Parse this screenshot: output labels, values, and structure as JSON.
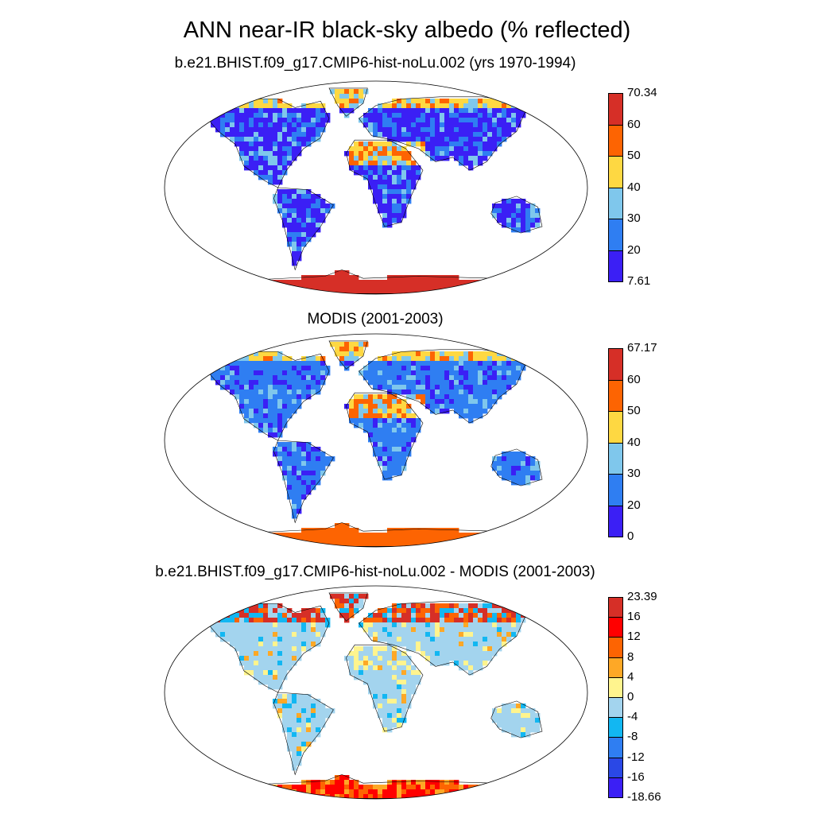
{
  "figure": {
    "title": "ANN near-IR black-sky albedo (% reflected)"
  },
  "panels": [
    {
      "id": "model",
      "title": "b.e21.BHIST.f09_g17.CMIP6-hist-noLu.002 (yrs 1970-1994)",
      "colorbar": {
        "max_label": "70.34",
        "min_label": "7.61",
        "tick_labels": [
          "60",
          "50",
          "40",
          "30",
          "20"
        ],
        "colors": [
          "#d62f27",
          "#fd6402",
          "#fed842",
          "#7fc7ec",
          "#2f7ef2",
          "#3b1ff5"
        ]
      }
    },
    {
      "id": "obs",
      "title": "MODIS (2001-2003)",
      "colorbar": {
        "max_label": "67.17",
        "min_label": "0",
        "tick_labels": [
          "60",
          "50",
          "40",
          "30",
          "20"
        ],
        "colors": [
          "#d62f27",
          "#fd6402",
          "#fed842",
          "#7fc7ec",
          "#2f7ef2",
          "#3b1ff5"
        ]
      }
    },
    {
      "id": "diff",
      "title": "b.e21.BHIST.f09_g17.CMIP6-hist-noLu.002 - MODIS (2001-2003)",
      "colorbar": {
        "max_label": "23.39",
        "min_label": "-18.66",
        "tick_labels": [
          "16",
          "12",
          "8",
          "4",
          "0",
          "-4",
          "-8",
          "-12",
          "-16"
        ],
        "colors": [
          "#d62f27",
          "#ff0000",
          "#fd6402",
          "#fea826",
          "#fff48e",
          "#a3d4ee",
          "#12b7f2",
          "#2f7ef2",
          "#2a48e6",
          "#3b1ff5"
        ]
      }
    }
  ]
}
